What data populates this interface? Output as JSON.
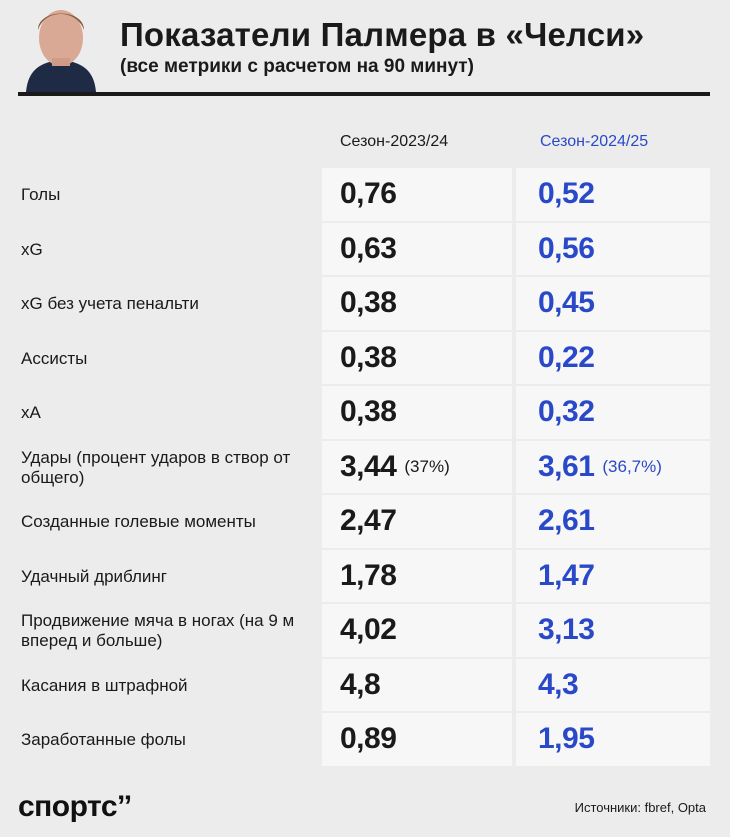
{
  "header": {
    "title": "Показатели Палмера в «Челси»",
    "subtitle": "(все метрики с расчетом на 90 минут)"
  },
  "columns": {
    "season1": "Сезон-2023/24",
    "season2": "Сезон-2024/25"
  },
  "colors": {
    "accent": "#2a49c8",
    "text": "#1a1a1a",
    "background": "#ececec",
    "cell": "#f7f7f7"
  },
  "rows": [
    {
      "label": "Голы",
      "v1": "0,76",
      "v2": "0,52",
      "p1": "",
      "p2": ""
    },
    {
      "label": "xG",
      "v1": "0,63",
      "v2": "0,56",
      "p1": "",
      "p2": ""
    },
    {
      "label": "xG без учета пенальти",
      "v1": "0,38",
      "v2": "0,45",
      "p1": "",
      "p2": ""
    },
    {
      "label": "Ассисты",
      "v1": "0,38",
      "v2": "0,22",
      "p1": "",
      "p2": ""
    },
    {
      "label": "xA",
      "v1": "0,38",
      "v2": "0,32",
      "p1": "",
      "p2": ""
    },
    {
      "label": "Удары (процент ударов в створ от общего)",
      "v1": "3,44",
      "v2": "3,61",
      "p1": "(37%)",
      "p2": "(36,7%)"
    },
    {
      "label": "Созданные голевые моменты",
      "v1": "2,47",
      "v2": "2,61",
      "p1": "",
      "p2": ""
    },
    {
      "label": "Удачный дриблинг",
      "v1": "1,78",
      "v2": "1,47",
      "p1": "",
      "p2": ""
    },
    {
      "label": "Продвижение мяча в ногах (на 9 м вперед и больше)",
      "v1": "4,02",
      "v2": "3,13",
      "p1": "",
      "p2": ""
    },
    {
      "label": "Касания в штрафной",
      "v1": "4,8",
      "v2": "4,3",
      "p1": "",
      "p2": ""
    },
    {
      "label": "Заработанные фолы",
      "v1": "0,89",
      "v2": "1,95",
      "p1": "",
      "p2": ""
    }
  ],
  "footer": {
    "logo": "спортс’’",
    "source": "Источники: fbref, Opta"
  }
}
